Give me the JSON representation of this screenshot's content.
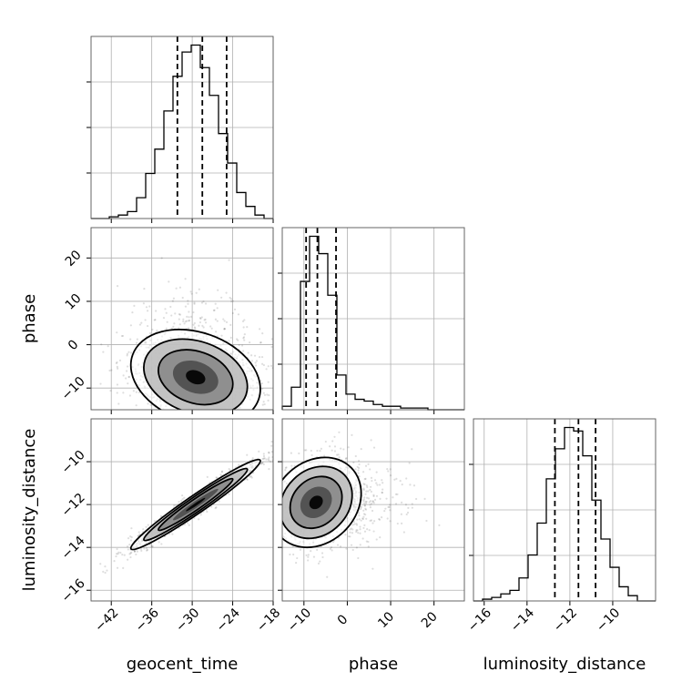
{
  "chart_data": {
    "type": "corner",
    "parameters": [
      "geocent_time",
      "phase",
      "luminosity_distance"
    ],
    "axes": {
      "geocent_time": {
        "label": "geocent_time",
        "range": [
          -45,
          -18
        ],
        "ticks": [
          -42,
          -36,
          -30,
          -24,
          -18
        ],
        "tick_labels": [
          "−42",
          "−36",
          "−30",
          "−24",
          "−18"
        ]
      },
      "phase": {
        "label": "phase",
        "range": [
          -15,
          27
        ],
        "ticks": [
          -10,
          0,
          10,
          20
        ],
        "tick_labels": [
          "−10",
          "0",
          "10",
          "20"
        ]
      },
      "luminosity_distance": {
        "label": "luminosity_distance",
        "range": [
          -16.5,
          -8.0
        ],
        "ticks": [
          -16,
          -14,
          -12,
          -10
        ],
        "tick_labels": [
          "−16",
          "−14",
          "−12",
          "−10"
        ]
      }
    },
    "marginals": {
      "geocent_time": {
        "bin_edges": [
          -45.0,
          -43.65,
          -42.3,
          -40.95,
          -39.6,
          -38.25,
          -36.9,
          -35.55,
          -34.2,
          -32.85,
          -31.5,
          -30.15,
          -28.8,
          -27.45,
          -26.1,
          -24.75,
          -23.4,
          -22.05,
          -20.7,
          -19.35,
          -18.0
        ],
        "counts": [
          0,
          0,
          1,
          2,
          4,
          12,
          26,
          40,
          62,
          82,
          96,
          100,
          87,
          71,
          49,
          32,
          15,
          7,
          2,
          0
        ],
        "quantiles": [
          -32.2,
          -28.5,
          -24.9
        ]
      },
      "phase": {
        "bin_edges": [
          -15.0,
          -12.9,
          -10.8,
          -8.7,
          -6.6,
          -4.5,
          -2.4,
          -0.3,
          1.8,
          3.9,
          6.0,
          8.1,
          10.2,
          12.3,
          14.4,
          16.5,
          18.6,
          20.7,
          22.8,
          24.9,
          27.0
        ],
        "counts": [
          2,
          13,
          74,
          100,
          90,
          66,
          20,
          9,
          6,
          5,
          3,
          2,
          2,
          1,
          1,
          1,
          0,
          0,
          0,
          0
        ],
        "quantiles": [
          -9.5,
          -6.9,
          -2.6
        ]
      },
      "luminosity_distance": {
        "bin_edges": [
          -16.5,
          -16.075,
          -15.65,
          -15.225,
          -14.8,
          -14.375,
          -13.95,
          -13.525,
          -13.1,
          -12.675,
          -12.25,
          -11.825,
          -11.4,
          -10.975,
          -10.55,
          -10.125,
          -9.7,
          -9.275,
          -8.85,
          -8.425,
          -8.0
        ],
        "counts": [
          0,
          1,
          2,
          4,
          6,
          13,
          26,
          44,
          69,
          86,
          98,
          96,
          82,
          57,
          35,
          19,
          8,
          3,
          0,
          0
        ],
        "quantiles": [
          -12.7,
          -11.6,
          -10.8
        ]
      }
    },
    "joint": [
      {
        "x": "geocent_time",
        "y": "phase",
        "mean": [
          -29.5,
          -7.5
        ],
        "std": [
          4.8,
          5.5
        ],
        "correlation": -0.25
      },
      {
        "x": "geocent_time",
        "y": "luminosity_distance",
        "mean": [
          -29.5,
          -12.0
        ],
        "std": [
          4.8,
          1.05
        ],
        "correlation": 0.97
      },
      {
        "x": "phase",
        "y": "luminosity_distance",
        "mean": [
          -7.2,
          -11.9
        ],
        "std": [
          5.2,
          1.05
        ],
        "correlation": 0.2
      }
    ],
    "grid": true,
    "colors": {
      "line": "#000000",
      "quantile": "#000000",
      "points": "#000000",
      "grid": "#b0b0b0"
    }
  }
}
